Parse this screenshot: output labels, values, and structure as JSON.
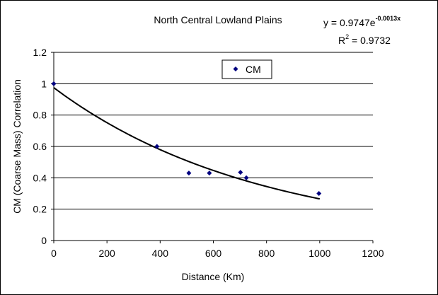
{
  "chart_data": {
    "type": "scatter",
    "title": "North Central Lowland Plains",
    "xlabel": "Distance (Km)",
    "ylabel": "CM (Coarse Mass) Correlation",
    "xlim": [
      0,
      1200
    ],
    "ylim": [
      0,
      1.2
    ],
    "x_ticks": [
      0,
      200,
      400,
      600,
      800,
      1000,
      1200
    ],
    "y_ticks": [
      0,
      0.2,
      0.4,
      0.6,
      0.8,
      1,
      1.2
    ],
    "x_tick_labels": [
      "0",
      "200",
      "400",
      "600",
      "800",
      "1000",
      "1200"
    ],
    "y_tick_labels": [
      "0",
      "0.2",
      "0.4",
      "0.6",
      "0.8",
      "1",
      "1.2"
    ],
    "grid": "horizontal",
    "legend": {
      "placement": "top-center",
      "entries": [
        "CM"
      ]
    },
    "series": [
      {
        "name": "CM",
        "marker": "diamond",
        "color": "#000080",
        "points": [
          {
            "x": 0,
            "y": 1.0
          },
          {
            "x": 388,
            "y": 0.6
          },
          {
            "x": 508,
            "y": 0.43
          },
          {
            "x": 585,
            "y": 0.43
          },
          {
            "x": 702,
            "y": 0.435
          },
          {
            "x": 724,
            "y": 0.4
          },
          {
            "x": 997,
            "y": 0.3
          }
        ]
      }
    ],
    "trendline": {
      "type": "exponential",
      "a": 0.9747,
      "b": -0.0013,
      "x_range": [
        0,
        1000
      ],
      "color": "#000000",
      "equation": {
        "base": "y = 0.9747e",
        "exponent": "-0.0013x",
        "r2_label": "R",
        "r2_power": "2",
        "r2_value": " = 0.9732"
      }
    }
  }
}
